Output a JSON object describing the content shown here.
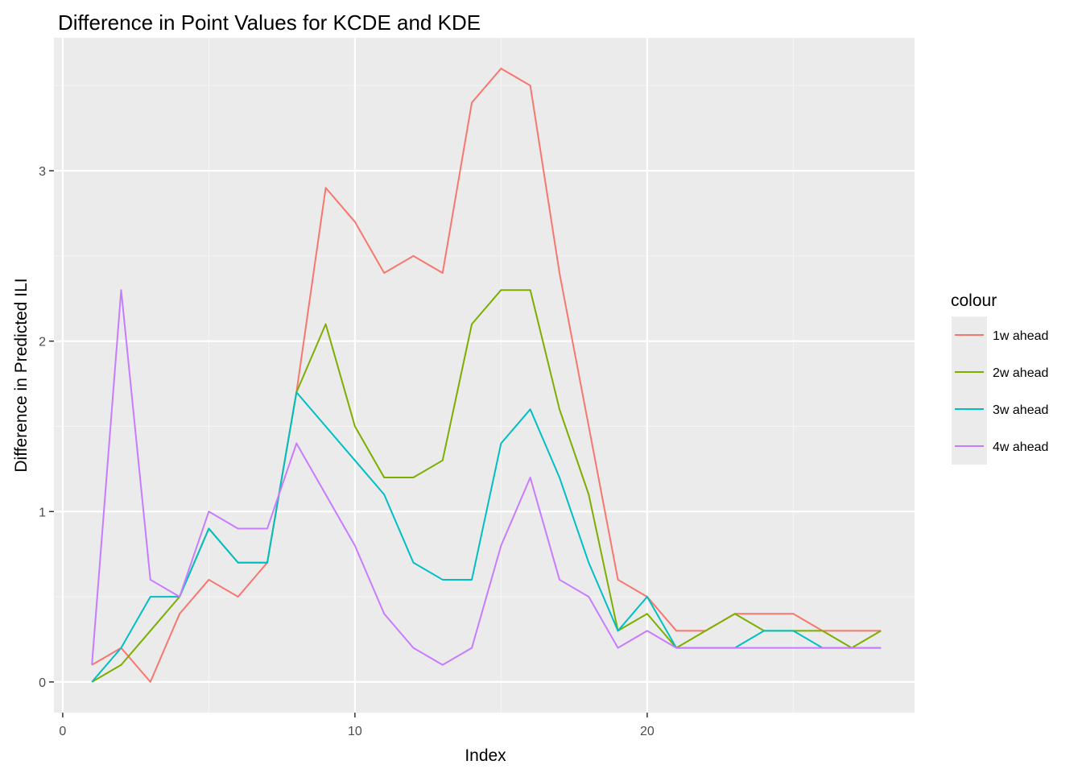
{
  "chart_data": {
    "type": "line",
    "title": "Difference in Point Values for KCDE and KDE",
    "xlabel": "Index",
    "ylabel": "Difference in Predicted ILI",
    "xlim": [
      -0.3,
      29.15
    ],
    "ylim": [
      -0.18,
      3.78
    ],
    "x_ticks": [
      0,
      10,
      20
    ],
    "x_tick_labels": [
      "0",
      "10",
      "20"
    ],
    "y_ticks": [
      0,
      1,
      2,
      3
    ],
    "y_tick_labels": [
      "0",
      "1",
      "2",
      "3"
    ],
    "grid": true,
    "legend": {
      "title": "colour",
      "placement": "right"
    },
    "x": [
      1,
      2,
      3,
      4,
      5,
      6,
      7,
      8,
      9,
      10,
      11,
      12,
      13,
      14,
      15,
      16,
      17,
      18,
      19,
      20,
      21,
      22,
      23,
      24,
      25,
      26,
      27,
      28
    ],
    "series": [
      {
        "name": "1w ahead",
        "color": "#F8766D",
        "values": [
          0.1,
          0.2,
          0.0,
          0.4,
          0.6,
          0.5,
          0.7,
          1.7,
          2.9,
          2.7,
          2.4,
          2.5,
          2.4,
          3.4,
          3.6,
          3.5,
          2.4,
          1.5,
          0.6,
          0.5,
          0.3,
          0.3,
          0.4,
          0.4,
          0.4,
          0.3,
          0.3,
          0.3
        ]
      },
      {
        "name": "2w ahead",
        "color": "#7CAE00",
        "values": [
          0.0,
          0.1,
          0.3,
          0.5,
          0.9,
          0.7,
          0.7,
          1.7,
          2.1,
          1.5,
          1.2,
          1.2,
          1.3,
          2.1,
          2.3,
          2.3,
          1.6,
          1.1,
          0.3,
          0.4,
          0.2,
          0.3,
          0.4,
          0.3,
          0.3,
          0.3,
          0.2,
          0.3
        ]
      },
      {
        "name": "3w ahead",
        "color": "#00BFC4",
        "values": [
          0.0,
          0.2,
          0.5,
          0.5,
          0.9,
          0.7,
          0.7,
          1.7,
          1.5,
          1.3,
          1.1,
          0.7,
          0.6,
          0.6,
          1.4,
          1.6,
          1.2,
          0.7,
          0.3,
          0.5,
          0.2,
          0.2,
          0.2,
          0.3,
          0.3,
          0.2,
          0.2,
          0.2
        ]
      },
      {
        "name": "4w ahead",
        "color": "#C77CFF",
        "values": [
          0.1,
          2.3,
          0.6,
          0.5,
          1.0,
          0.9,
          0.9,
          1.4,
          1.1,
          0.8,
          0.4,
          0.2,
          0.1,
          0.2,
          0.8,
          1.2,
          0.6,
          0.5,
          0.2,
          0.3,
          0.2,
          0.2,
          0.2,
          0.2,
          0.2,
          0.2,
          0.2,
          0.2
        ]
      }
    ],
    "colors": {
      "panel_background": "#EBEBEB",
      "grid_major": "#FFFFFF",
      "grid_minor": "#F5F5F5",
      "tick_mark": "#333333"
    }
  }
}
